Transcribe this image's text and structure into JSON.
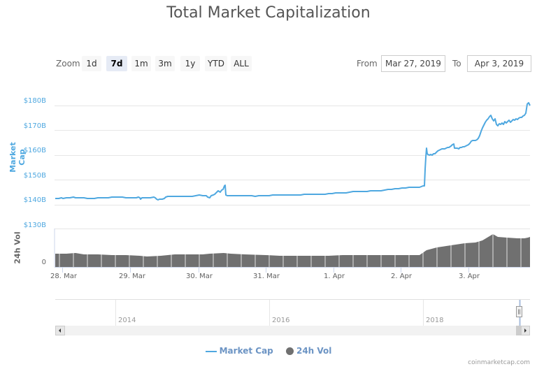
{
  "title": "Total Market Capitalization",
  "zoom": {
    "label": "Zoom",
    "buttons": [
      {
        "label": "1d",
        "selected": false
      },
      {
        "label": "7d",
        "selected": true
      },
      {
        "label": "1m",
        "selected": false
      },
      {
        "label": "3m",
        "selected": false
      },
      {
        "label": "1y",
        "selected": false
      },
      {
        "label": "YTD",
        "selected": false
      },
      {
        "label": "ALL",
        "selected": false
      }
    ]
  },
  "range": {
    "from_label": "From",
    "from_value": "Mar 27, 2019",
    "to_label": "To",
    "to_value": "Apr 3, 2019"
  },
  "axes": {
    "market_cap_label": "Market Cap",
    "volume_label": "24h Vol",
    "market_cap_ticks": [
      "$180B",
      "$170B",
      "$160B",
      "$150B",
      "$140B",
      "$130B"
    ],
    "volume_ticks": [
      "0"
    ],
    "x_ticks": [
      "28. Mar",
      "29. Mar",
      "30. Mar",
      "31. Mar",
      "1. Apr",
      "2. Apr",
      "3. Apr"
    ]
  },
  "navigator": {
    "year_labels": [
      "2014",
      "2016",
      "2018"
    ]
  },
  "legend": {
    "market_cap": "Market Cap",
    "volume": "24h Vol"
  },
  "credit": "coinmarketcap.com",
  "colors": {
    "market_cap": "#4fa8e0",
    "volume": "#707070",
    "selected_zoom": "#e6ebf5"
  },
  "chart_data": {
    "type": "line",
    "title": "Total Market Capitalization",
    "xlabel": "",
    "ylabel": "Market Cap",
    "ylim": [
      130,
      180
    ],
    "y_unit": "$B",
    "grid": true,
    "legend_position": "bottom",
    "categories": [
      "28. Mar",
      "29. Mar",
      "30. Mar",
      "31. Mar",
      "1. Apr",
      "2. Apr",
      "3. Apr"
    ],
    "series": [
      {
        "name": "Market Cap",
        "type": "line",
        "x": [
          "Mar 27 12:00",
          "Mar 28 00:00",
          "Mar 28 12:00",
          "Mar 29 00:00",
          "Mar 29 06:00",
          "Mar 29 12:00",
          "Mar 30 00:00",
          "Mar 30 09:00",
          "Mar 30 10:00",
          "Mar 30 12:00",
          "Mar 31 00:00",
          "Mar 31 12:00",
          "Apr 1 00:00",
          "Apr 1 12:00",
          "Apr 2 00:00",
          "Apr 2 08:00",
          "Apr 2 09:00",
          "Apr 2 12:00",
          "Apr 3 00:00",
          "Apr 3 06:00",
          "Apr 3 09:00",
          "Apr 3 12:00",
          "Apr 3 18:00",
          "Apr 3 23:00"
        ],
        "values": [
          142.5,
          142.8,
          142.6,
          143.2,
          142.0,
          143.0,
          143.4,
          143.8,
          147.0,
          143.6,
          143.4,
          143.8,
          144.0,
          144.6,
          145.4,
          146.0,
          163.0,
          160.0,
          165.0,
          167.0,
          176.5,
          171.5,
          175.0,
          180.0
        ]
      },
      {
        "name": "24h Vol",
        "type": "area",
        "note": "relative volume, separate panel, axis shows only 0",
        "relative_values": [
          0.36,
          0.37,
          0.35,
          0.33,
          0.32,
          0.34,
          0.36,
          0.38,
          0.35,
          0.33,
          0.31,
          0.31,
          0.32,
          0.34,
          0.35,
          0.36,
          0.46,
          0.52,
          0.58,
          0.64,
          0.78,
          0.72,
          0.7,
          0.72
        ]
      }
    ]
  }
}
